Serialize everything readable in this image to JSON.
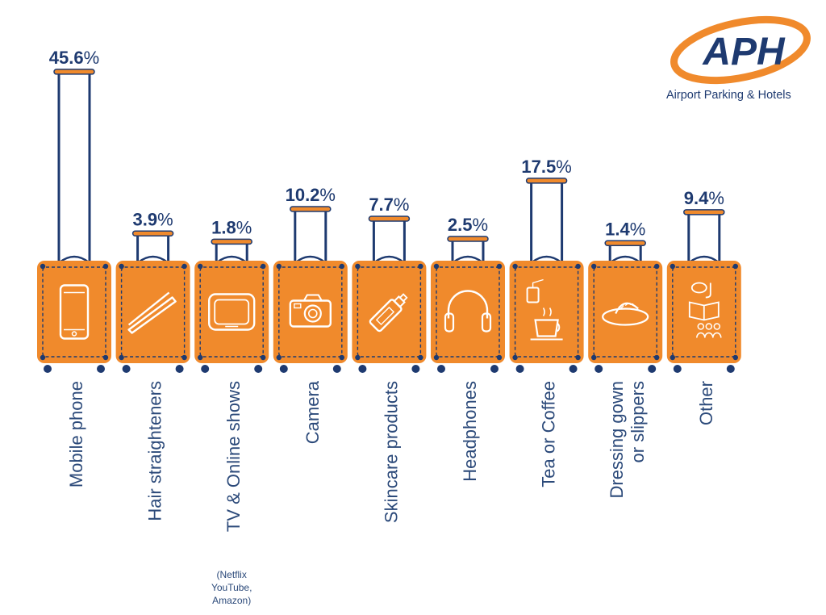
{
  "brand": {
    "logo_text": "APH",
    "name": "Airport Parking & Hotels",
    "colors": {
      "orange": "#f08a2c",
      "navy": "#1e3a70"
    }
  },
  "chart_data": {
    "type": "bar",
    "categories": [
      "Mobile phone",
      "Hair straighteners",
      "TV & Online shows",
      "Camera",
      "Skincare products",
      "Headphones",
      "Tea or Coffee",
      "Dressing gown or slippers",
      "Other"
    ],
    "category_lines": [
      [
        "Mobile phone"
      ],
      [
        "Hair straighteners"
      ],
      [
        "TV & Online shows"
      ],
      [
        "Camera"
      ],
      [
        "Skincare products"
      ],
      [
        "Headphones"
      ],
      [
        "Tea or Coffee"
      ],
      [
        "Dressing gown",
        "or slippers"
      ],
      [
        "Other"
      ]
    ],
    "values": [
      45.6,
      3.9,
      1.8,
      10.2,
      7.7,
      2.5,
      17.5,
      1.4,
      9.4
    ],
    "value_labels": [
      "45.6",
      "3.9",
      "1.8",
      "10.2",
      "7.7",
      "2.5",
      "17.5",
      "1.4",
      "9.4"
    ],
    "unit": "%",
    "icons": [
      "mobile-phone-icon",
      "hair-straightener-icon",
      "tv-icon",
      "camera-icon",
      "skincare-tube-icon",
      "headphones-icon",
      "tea-coffee-icon",
      "slipper-icon",
      "other-icon"
    ],
    "notes": [
      null,
      null,
      [
        "(Netflix",
        "YouTube,",
        "Amazon)"
      ],
      null,
      null,
      null,
      null,
      null,
      null
    ],
    "ylim": [
      0,
      46
    ]
  }
}
